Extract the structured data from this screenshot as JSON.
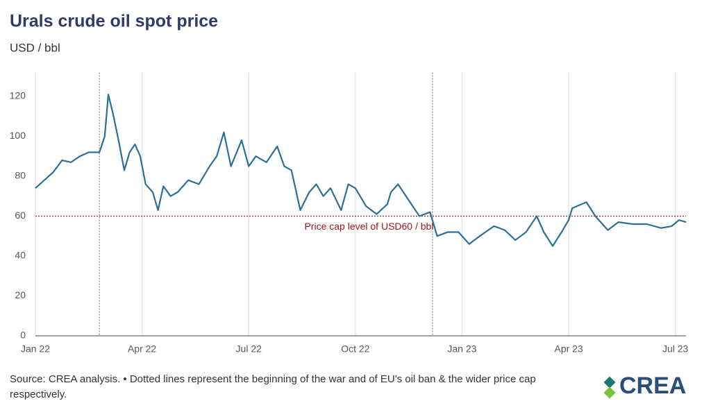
{
  "chart_data": {
    "type": "line",
    "title": "Urals crude oil spot price",
    "subtitle": "USD / bbl",
    "x": [
      0,
      0.25,
      0.5,
      0.75,
      1,
      1.25,
      1.5,
      1.8,
      1.95,
      2.05,
      2.2,
      2.35,
      2.5,
      2.65,
      2.8,
      2.95,
      3.1,
      3.3,
      3.45,
      3.6,
      3.8,
      4.0,
      4.3,
      4.6,
      4.9,
      5.1,
      5.3,
      5.5,
      5.8,
      6.0,
      6.2,
      6.5,
      6.8,
      7.0,
      7.2,
      7.45,
      7.7,
      7.9,
      8.1,
      8.3,
      8.6,
      8.8,
      9.0,
      9.3,
      9.6,
      9.9,
      10.0,
      10.2,
      10.5,
      10.8,
      11.1,
      11.3,
      11.6,
      11.9,
      12.2,
      12.5,
      12.9,
      13.2,
      13.5,
      13.8,
      14.1,
      14.3,
      14.55,
      14.8,
      15.0,
      15.1,
      15.5,
      15.75,
      16.1,
      16.4,
      16.8,
      17.2,
      17.6,
      17.9,
      18.1,
      18.3
    ],
    "series": [
      {
        "name": "Urals",
        "color": "#2a6f97",
        "values": [
          74,
          78,
          82,
          88,
          87,
          90,
          92,
          92,
          100,
          121,
          110,
          97,
          83,
          92,
          96,
          90,
          76,
          72,
          63,
          75,
          70,
          72,
          78,
          76,
          85,
          90,
          102,
          85,
          98,
          85,
          90,
          87,
          95,
          85,
          83,
          63,
          72,
          76,
          70,
          74,
          63,
          76,
          74,
          65,
          61,
          66,
          72,
          76,
          68,
          60,
          62,
          50,
          52,
          52,
          46,
          50,
          55,
          53,
          48,
          52,
          60,
          52,
          45,
          52,
          58,
          64,
          67,
          60,
          53,
          57,
          56,
          56,
          54,
          55,
          58,
          57
        ]
      }
    ],
    "xlim": [
      0,
      18.3
    ],
    "xticks": [
      {
        "value": 0,
        "label": "Jan 22"
      },
      {
        "value": 3,
        "label": "Apr 22"
      },
      {
        "value": 6,
        "label": "Jul 22"
      },
      {
        "value": 9,
        "label": "Oct 22"
      },
      {
        "value": 12,
        "label": "Jan 23"
      },
      {
        "value": 15,
        "label": "Apr 23"
      },
      {
        "value": 18,
        "label": "Jul 23"
      }
    ],
    "ylim": [
      0,
      125
    ],
    "yticks": [
      0,
      20,
      40,
      60,
      80,
      100,
      120
    ],
    "event_lines": [
      1.8,
      11.17
    ],
    "reference_line": {
      "value": 60,
      "label": "Price cap level of USD60 / bbl",
      "color": "#a0141e"
    },
    "source": "Source: CREA analysis. • Dotted lines represent the beginning of the war and of EU's oil ban & the wider price cap respectively.",
    "logo": "CREA"
  }
}
